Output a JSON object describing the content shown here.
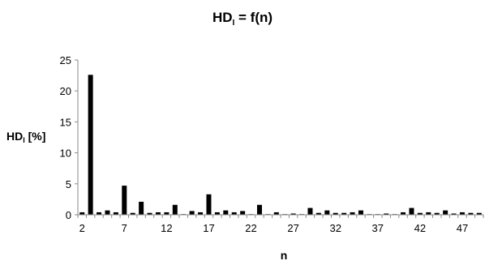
{
  "chart_data": {
    "type": "bar",
    "title": {
      "main": "HD",
      "subscript": "I",
      "suffix": " = f(n)"
    },
    "ylabel": {
      "main": "HD",
      "subscript": "I",
      "suffix": " [%]"
    },
    "xlabel": "n",
    "ylim": [
      0,
      25
    ],
    "y_ticks": [
      "0",
      "5",
      "10",
      "15",
      "20",
      "25"
    ],
    "x_ticks": [
      "2",
      "7",
      "12",
      "17",
      "22",
      "27",
      "32",
      "37",
      "42",
      "47"
    ],
    "grid": false,
    "x": [
      2,
      3,
      4,
      5,
      6,
      7,
      8,
      9,
      10,
      11,
      12,
      13,
      14,
      15,
      16,
      17,
      18,
      19,
      20,
      21,
      22,
      23,
      24,
      25,
      26,
      27,
      28,
      29,
      30,
      31,
      32,
      33,
      34,
      35,
      36,
      37,
      38,
      39,
      40,
      41,
      42,
      43,
      44,
      45,
      46,
      47,
      48,
      49
    ],
    "values": [
      0.4,
      22.6,
      0.4,
      0.7,
      0.4,
      4.7,
      0.3,
      2.1,
      0.3,
      0.4,
      0.4,
      1.6,
      0.1,
      0.6,
      0.4,
      3.3,
      0.4,
      0.7,
      0.4,
      0.6,
      0.1,
      1.6,
      0.1,
      0.4,
      0.1,
      0.2,
      0.1,
      1.1,
      0.3,
      0.7,
      0.3,
      0.3,
      0.4,
      0.7,
      0.1,
      0.1,
      0.2,
      0.1,
      0.4,
      1.1,
      0.3,
      0.4,
      0.3,
      0.7,
      0.2,
      0.4,
      0.3,
      0.3
    ]
  }
}
